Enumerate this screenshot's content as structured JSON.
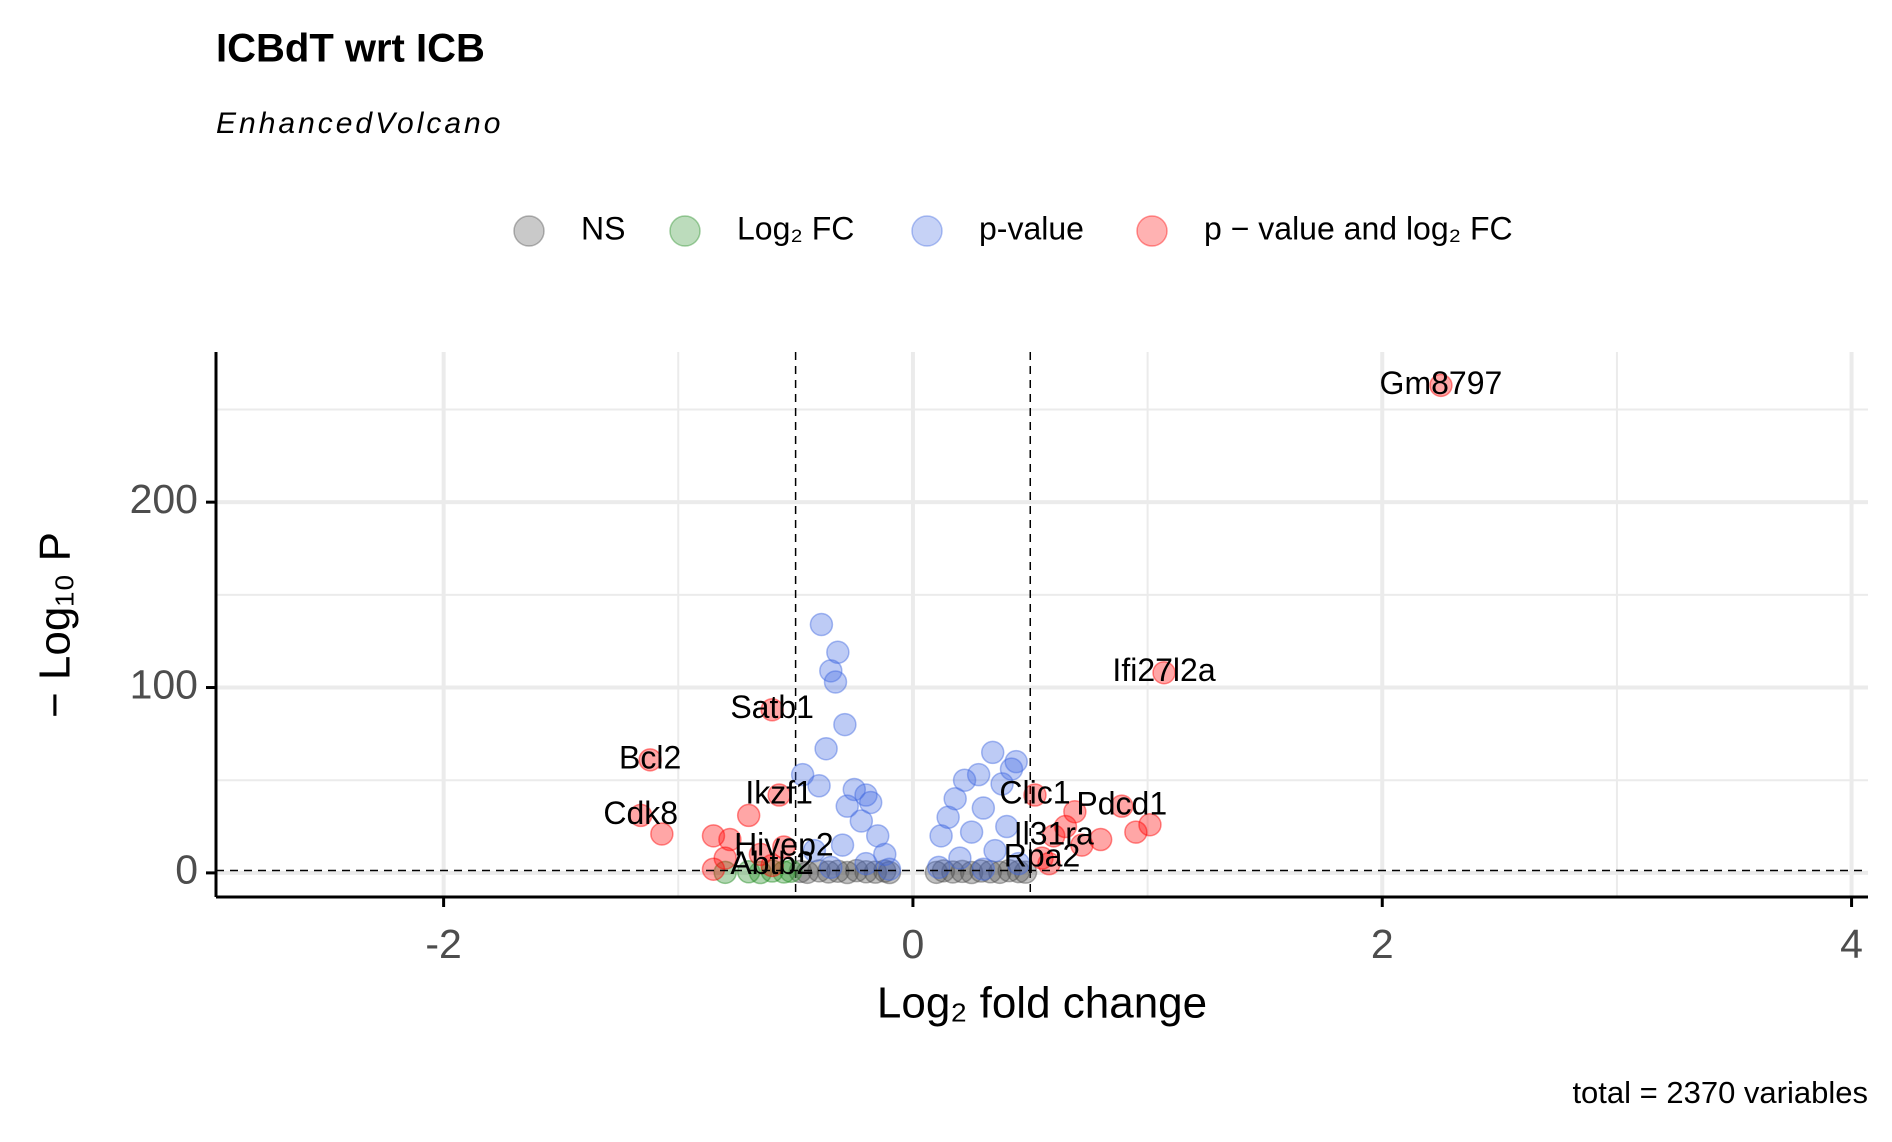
{
  "chart_data": {
    "type": "scatter",
    "title": "ICBdT wrt ICB",
    "subtitle": "EnhancedVolcano",
    "x_label": "Log₂ fold change",
    "y_label": "− Log₁₀ P",
    "caption": "total = 2370 variables",
    "xlim": [
      -2.97,
      4.07
    ],
    "ylim": [
      -13,
      281
    ],
    "xticks": [
      -2,
      0,
      2,
      4
    ],
    "yticks": [
      0,
      100,
      200
    ],
    "x_minor_grid": [
      -1,
      1,
      3
    ],
    "y_minor_grid": [
      50,
      150,
      250
    ],
    "fc_cutoff_lines": [
      -0.5,
      0.5
    ],
    "p_cutoff_line": 1.3,
    "grid": true,
    "legend": "top",
    "series": [
      {
        "name": "NS",
        "color": "#4d4d4d",
        "x": [
          -0.48,
          -0.45,
          -0.4,
          -0.36,
          -0.32,
          -0.28,
          -0.24,
          -0.2,
          -0.16,
          -0.12,
          -0.1,
          0.1,
          0.13,
          0.17,
          0.21,
          0.25,
          0.29,
          0.33,
          0.37,
          0.41,
          0.45,
          0.48
        ],
        "values": [
          0.8,
          0.3,
          1.1,
          0.5,
          0.9,
          0.2,
          1.2,
          0.6,
          0.4,
          1.0,
          0.2,
          0.3,
          1.1,
          0.5,
          0.8,
          0.2,
          1.0,
          0.6,
          0.3,
          1.2,
          0.7,
          0.4
        ]
      },
      {
        "name": "Log₂ FC",
        "color": "#228b22",
        "x": [
          -0.8,
          -0.7,
          -0.65,
          -0.6,
          -0.55,
          -0.52
        ],
        "values": [
          0.3,
          0.6,
          0.2,
          1.0,
          0.5,
          0.9
        ]
      },
      {
        "name": "p-value",
        "color": "#4169e1",
        "x": [
          -0.39,
          -0.32,
          -0.35,
          -0.33,
          -0.29,
          -0.37,
          -0.47,
          -0.4,
          -0.25,
          -0.2,
          -0.18,
          -0.28,
          -0.22,
          -0.15,
          -0.3,
          -0.12,
          -0.42,
          -0.2,
          -0.35,
          -0.1,
          0.34,
          0.44,
          0.42,
          0.28,
          0.22,
          0.38,
          0.18,
          0.15,
          0.3,
          0.12,
          0.25,
          0.4,
          0.35,
          0.2,
          0.45,
          0.11,
          0.3
        ],
        "values": [
          134,
          119,
          109,
          103,
          80,
          67,
          53,
          47,
          45,
          42,
          38,
          36,
          28,
          20,
          15,
          10,
          12,
          5,
          3,
          2,
          65,
          60,
          56,
          53,
          50,
          48,
          40,
          30,
          35,
          20,
          22,
          25,
          12,
          8,
          5,
          3,
          2
        ]
      },
      {
        "name": "p − value and log₂ FC",
        "color": "#ff0000",
        "x": [
          2.25,
          1.07,
          -0.6,
          -1.12,
          -1.16,
          -1.07,
          -0.57,
          -0.7,
          -0.85,
          -0.78,
          -0.55,
          -0.65,
          -0.8,
          -0.6,
          -0.85,
          0.52,
          0.69,
          0.89,
          1.01,
          0.95,
          0.8,
          0.6,
          0.72,
          0.65,
          0.55,
          0.58
        ],
        "values": [
          263,
          108,
          88,
          61,
          31,
          21,
          42,
          31,
          20,
          18,
          14,
          10,
          8,
          4,
          2,
          42,
          33,
          36,
          26,
          22,
          18,
          20,
          15,
          25,
          8,
          5
        ],
        "point_labels": [
          "Gm8797",
          "Ifi27l2a",
          "Satb1",
          "Bcl2",
          "Cdk8",
          null,
          "Ikzf1",
          null,
          null,
          null,
          "Hivep2",
          null,
          null,
          "Abtb2",
          null,
          "Clic1",
          null,
          "Pdcd1",
          null,
          null,
          null,
          "Il31ra",
          null,
          null,
          "Rpa2",
          null
        ]
      }
    ]
  }
}
